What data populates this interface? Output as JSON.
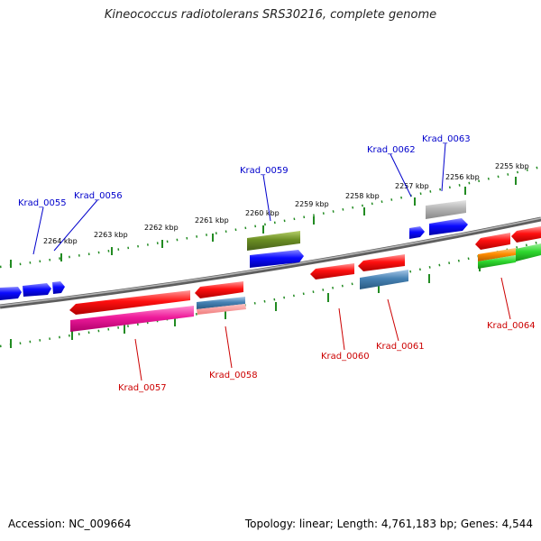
{
  "title": "Kineococcus radiotolerans SRS30216, complete genome",
  "footer": {
    "accession": "Accession: NC_009664",
    "summary": "Topology: linear; Length: 4,761,183 bp; Genes: 4,544"
  },
  "colors": {
    "backbone": "#808080",
    "tick_track": "#228b22",
    "label_top": "#0000cc",
    "label_bottom": "#cc0000",
    "gene_red": "#ff0000",
    "gene_blue": "#0000ff",
    "gene_pink": "#ff1493",
    "gene_steel": "#4682b4",
    "gene_olive": "#6b8e23",
    "gene_grey": "#aaaaaa",
    "gene_green": "#22cc22",
    "gene_orange": "#ff8c00"
  },
  "scale_labels": [
    "2264 kbp",
    "2263 kbp",
    "2262 kbp",
    "2261 kbp",
    "2260 kbp",
    "2259 kbp",
    "2258 kbp",
    "2257 kbp",
    "2256 kbp",
    "2255 kbp"
  ],
  "gene_labels": {
    "Krad_0055": "Krad_0055",
    "Krad_0056": "Krad_0056",
    "Krad_0057": "Krad_0057",
    "Krad_0058": "Krad_0058",
    "Krad_0059": "Krad_0059",
    "Krad_0060": "Krad_0060",
    "Krad_0061": "Krad_0061",
    "Krad_0062": "Krad_0062",
    "Krad_0063": "Krad_0063",
    "Krad_0064": "Krad_0064"
  }
}
